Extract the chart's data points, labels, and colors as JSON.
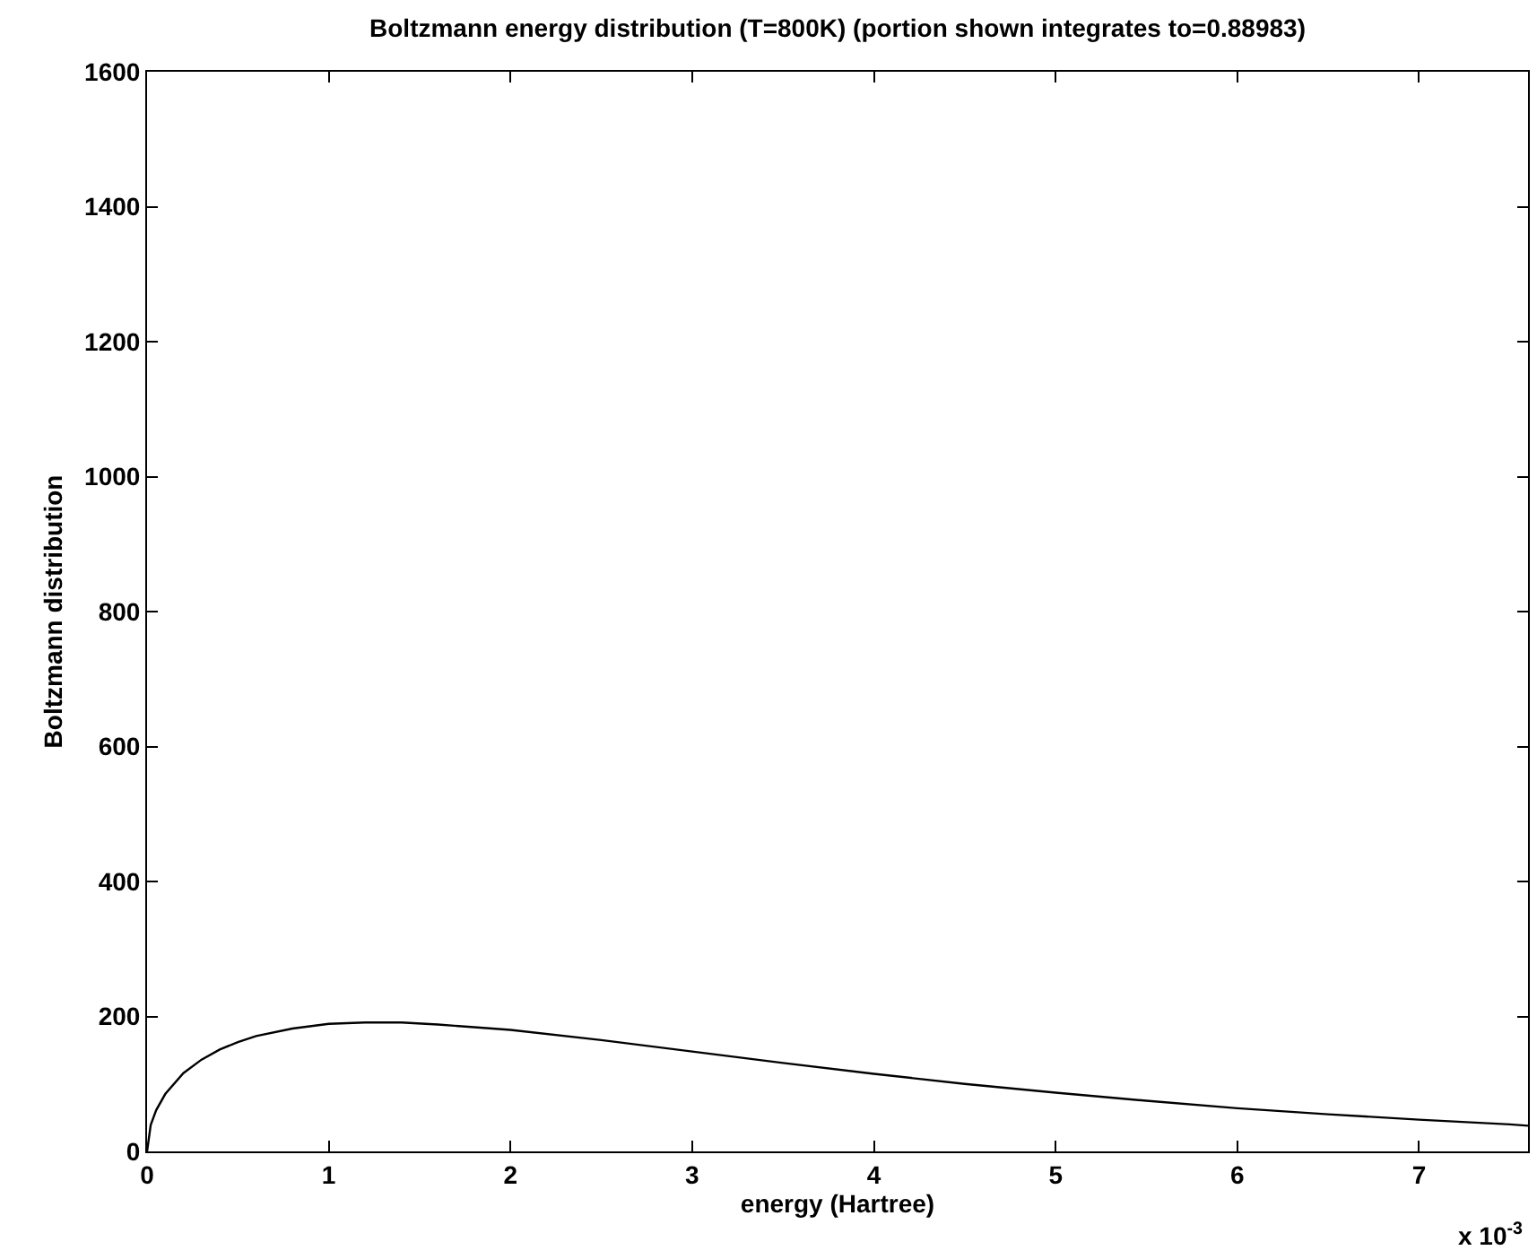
{
  "chart_data": {
    "type": "line",
    "title": "Boltzmann energy distribution (T=800K) (portion shown integrates to=0.88983)",
    "xlabel": "energy (Hartree)",
    "ylabel": "Boltzmann distribution",
    "annotations": [
      "x 10$^{-3}$"
    ],
    "x": [
      0,
      0.02,
      0.05,
      0.1,
      0.2,
      0.3,
      0.4,
      0.5,
      0.6,
      0.8,
      1.0,
      1.2,
      1.4,
      1.6,
      1.8,
      2.0,
      2.5,
      3.0,
      3.5,
      4.0,
      4.5,
      5.0,
      5.5,
      6.0,
      6.5,
      7.0,
      7.5,
      7.6
    ],
    "series": [
      {
        "color": "#000000",
        "values": [
          0,
          39,
          61,
          85,
          116,
          136,
          151,
          162,
          171,
          182,
          189,
          191,
          191,
          188,
          184,
          180,
          165,
          148,
          131,
          115,
          100,
          87,
          75,
          64,
          55,
          47,
          40,
          38
        ]
      }
    ],
    "xlim": [
      0,
      7.6
    ],
    "xticks": [
      0,
      1,
      2,
      3,
      4,
      5,
      6,
      7
    ],
    "ylim": [
      0,
      1600
    ],
    "yticks": [
      0,
      200,
      400,
      600,
      800,
      1000,
      1200,
      1400,
      1600
    ],
    "marker": "none",
    "line_style": "solid"
  }
}
